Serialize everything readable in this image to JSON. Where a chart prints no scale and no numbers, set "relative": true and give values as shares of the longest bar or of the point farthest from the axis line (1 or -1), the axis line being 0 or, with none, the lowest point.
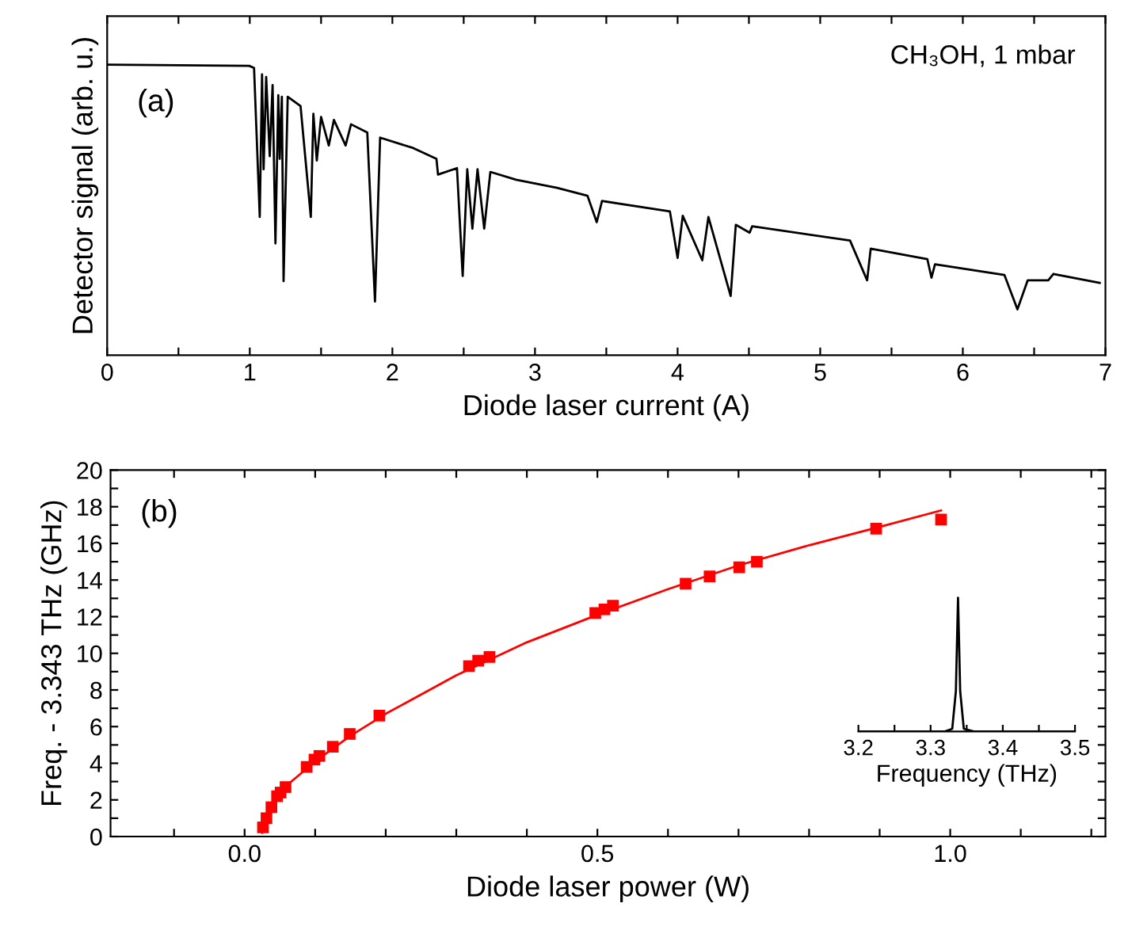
{
  "chart_data": [
    {
      "type": "line",
      "relative": true,
      "xlabel": "Diode laser current (A)",
      "ylabel": "Detector signal (arb. u.)",
      "annotations": [
        "(a)",
        "CH₃OH, 1 mbar"
      ],
      "xlim": [
        0,
        7
      ],
      "xticks": [
        0,
        {
          "value": 0.5,
          "label": null
        },
        1,
        {
          "value": 1.5,
          "label": null
        },
        2,
        {
          "value": 2.5,
          "label": null
        },
        3,
        {
          "value": 3.5,
          "label": null
        },
        4,
        {
          "value": 4.5,
          "label": null
        },
        5,
        {
          "value": 5.5,
          "label": null
        },
        6,
        {
          "value": 6.5,
          "label": null
        },
        7
      ],
      "grid": false,
      "legend": false,
      "series": [
        {
          "color": "#000000",
          "x": [
            0,
            0.996,
            1.03,
            1.07,
            1.086,
            1.097,
            1.115,
            1.14,
            1.16,
            1.18,
            1.2,
            1.21,
            1.225,
            1.237,
            1.266,
            1.356,
            1.428,
            1.446,
            1.47,
            1.5,
            1.554,
            1.59,
            1.672,
            1.71,
            1.824,
            1.878,
            1.914,
            2.147,
            2.309,
            2.32,
            2.453,
            2.493,
            2.525,
            2.561,
            2.597,
            2.644,
            2.687,
            2.867,
            3.155,
            3.368,
            3.433,
            3.47,
            3.946,
            4.0,
            4.036,
            4.173,
            4.216,
            4.372,
            4.408,
            4.505,
            4.523,
            5.209,
            5.329,
            5.354,
            5.751,
            5.78,
            5.805,
            6.292,
            6.383,
            6.455,
            6.599,
            6.635,
            6.96
          ],
          "values": [
            1.0,
            0.996,
            0.989,
            0.476,
            0.967,
            0.64,
            0.958,
            0.685,
            0.93,
            0.385,
            0.895,
            0.676,
            0.89,
            0.255,
            0.89,
            0.858,
            0.476,
            0.831,
            0.67,
            0.82,
            0.722,
            0.81,
            0.722,
            0.795,
            0.767,
            0.185,
            0.749,
            0.713,
            0.676,
            0.622,
            0.644,
            0.273,
            0.64,
            0.436,
            0.64,
            0.436,
            0.631,
            0.604,
            0.576,
            0.549,
            0.458,
            0.531,
            0.495,
            0.335,
            0.48,
            0.327,
            0.476,
            0.204,
            0.449,
            0.422,
            0.444,
            0.395,
            0.258,
            0.367,
            0.331,
            0.267,
            0.313,
            0.276,
            0.158,
            0.258,
            0.258,
            0.28,
            0.249
          ]
        }
      ]
    },
    {
      "type": "scatter",
      "xlabel": "Diode laser power (W)",
      "ylabel": "Freq. - 3.343 THz (GHz)",
      "annotations": [
        "(b)"
      ],
      "xlim": [
        -0.19,
        1.22
      ],
      "xticks": [
        {
          "value": -0.1,
          "label": null
        },
        {
          "value": 0.0,
          "label": "0.0"
        },
        {
          "value": 0.1,
          "label": null
        },
        {
          "value": 0.2,
          "label": null
        },
        {
          "value": 0.3,
          "label": null
        },
        {
          "value": 0.4,
          "label": null
        },
        {
          "value": 0.5,
          "label": "0.5"
        },
        {
          "value": 0.6,
          "label": null
        },
        {
          "value": 0.7,
          "label": null
        },
        {
          "value": 0.8,
          "label": null
        },
        {
          "value": 0.9,
          "label": null
        },
        {
          "value": 1.0,
          "label": "1.0"
        },
        {
          "value": 1.1,
          "label": null
        },
        {
          "value": 1.2,
          "label": null
        }
      ],
      "ylim": [
        0,
        20
      ],
      "yticks": [
        0,
        {
          "value": 1,
          "label": null
        },
        2,
        {
          "value": 3,
          "label": null
        },
        4,
        {
          "value": 5,
          "label": null
        },
        6,
        {
          "value": 7,
          "label": null
        },
        8,
        {
          "value": 9,
          "label": null
        },
        10,
        {
          "value": 11,
          "label": null
        },
        12,
        {
          "value": 13,
          "label": null
        },
        14,
        {
          "value": 15,
          "label": null
        },
        16,
        {
          "value": 17,
          "label": null
        },
        18,
        {
          "value": 19,
          "label": null
        },
        20
      ],
      "grid": false,
      "legend": false,
      "marker": "square",
      "series": [
        {
          "color": "#ff0000",
          "x": [
            0.026,
            0.031,
            0.038,
            0.046,
            0.051,
            0.058,
            0.088,
            0.099,
            0.106,
            0.125,
            0.149,
            0.191,
            0.318,
            0.331,
            0.347,
            0.497,
            0.51,
            0.522,
            0.625,
            0.659,
            0.701,
            0.726,
            0.895,
            0.987
          ],
          "values": [
            0.5,
            1.0,
            1.6,
            2.2,
            2.4,
            2.7,
            3.8,
            4.2,
            4.4,
            4.9,
            5.6,
            6.6,
            9.3,
            9.6,
            9.8,
            12.2,
            12.4,
            12.6,
            13.8,
            14.2,
            14.7,
            15.0,
            16.8,
            17.3
          ]
        },
        {
          "type": "line",
          "marker": "none",
          "line_style": "solid",
          "color": "#ff0000",
          "x": [
            0.025,
            0.03,
            0.04,
            0.06,
            0.1,
            0.15,
            0.2,
            0.3,
            0.4,
            0.5,
            0.6,
            0.7,
            0.8,
            0.9,
            0.987
          ],
          "values": [
            0.2,
            0.9,
            1.7,
            2.8,
            4.1,
            5.5,
            6.7,
            8.8,
            10.6,
            12.1,
            13.5,
            14.8,
            15.9,
            16.9,
            17.8
          ]
        }
      ]
    },
    {
      "type": "line",
      "relative": true,
      "xlabel": "Frequency (THz)",
      "xlim": [
        3.2,
        3.5
      ],
      "xticks": [
        3.2,
        {
          "value": 3.25,
          "label": null
        },
        3.3,
        {
          "value": 3.35,
          "label": null
        },
        3.4,
        {
          "value": 3.45,
          "label": null
        },
        3.5
      ],
      "grid": false,
      "legend": false,
      "series": [
        {
          "color": "#000000",
          "x": [
            3.2,
            3.32,
            3.33,
            3.335,
            3.338,
            3.341,
            3.346,
            3.36,
            3.5
          ],
          "values": [
            0,
            0,
            0.02,
            0.3,
            1,
            0.3,
            0.02,
            0,
            0
          ]
        }
      ]
    }
  ]
}
